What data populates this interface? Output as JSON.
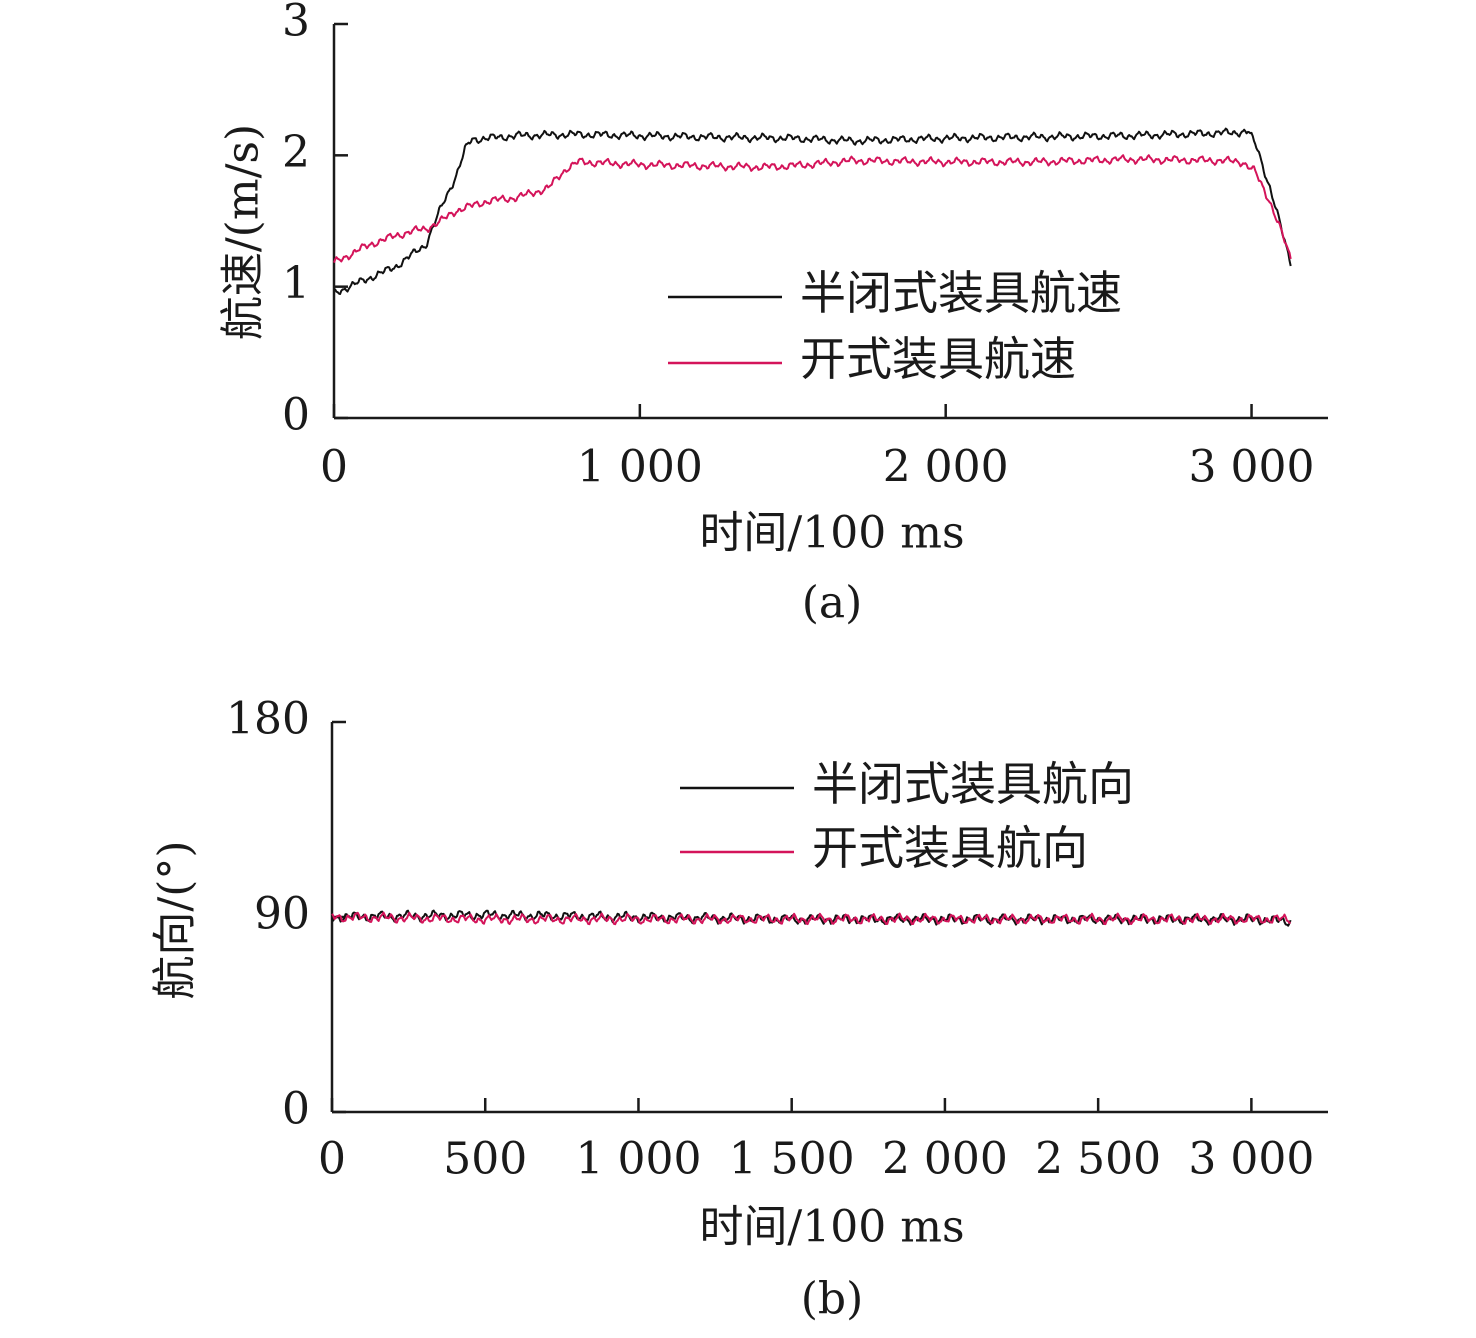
{
  "chart_data": [
    {
      "type": "line",
      "panel_label": "(a)",
      "xlabel": "时间/100 ms",
      "ylabel": "航速/(m/s)",
      "xlim": [
        0,
        3250
      ],
      "ylim": [
        0,
        3
      ],
      "x_ticks": [
        0,
        1000,
        2000,
        3000
      ],
      "x_tick_labels": [
        "0",
        "1 000",
        "2 000",
        "3 000"
      ],
      "y_ticks": [
        0,
        1,
        2,
        3
      ],
      "y_tick_labels": [
        "0",
        "1",
        "2",
        "3"
      ],
      "legend_position": "right-middle",
      "series": [
        {
          "name": "半闭式装具航速",
          "color": "#111111",
          "points": [
            [
              0,
              0.95
            ],
            [
              100,
              1.05
            ],
            [
              200,
              1.15
            ],
            [
              300,
              1.32
            ],
            [
              350,
              1.6
            ],
            [
              400,
              1.85
            ],
            [
              430,
              2.05
            ],
            [
              450,
              2.12
            ],
            [
              600,
              2.15
            ],
            [
              800,
              2.16
            ],
            [
              1000,
              2.15
            ],
            [
              1200,
              2.14
            ],
            [
              1500,
              2.13
            ],
            [
              1700,
              2.11
            ],
            [
              2000,
              2.13
            ],
            [
              2300,
              2.14
            ],
            [
              2600,
              2.15
            ],
            [
              2900,
              2.17
            ],
            [
              2990,
              2.18
            ],
            [
              3020,
              2.05
            ],
            [
              3060,
              1.75
            ],
            [
              3100,
              1.42
            ],
            [
              3130,
              1.17
            ]
          ]
        },
        {
          "name": "开式装具航速",
          "color": "#d4145a",
          "points": [
            [
              0,
              1.18
            ],
            [
              80,
              1.28
            ],
            [
              150,
              1.35
            ],
            [
              250,
              1.42
            ],
            [
              300,
              1.44
            ],
            [
              350,
              1.5
            ],
            [
              400,
              1.58
            ],
            [
              500,
              1.65
            ],
            [
              600,
              1.68
            ],
            [
              700,
              1.75
            ],
            [
              760,
              1.9
            ],
            [
              800,
              1.95
            ],
            [
              1000,
              1.93
            ],
            [
              1200,
              1.92
            ],
            [
              1400,
              1.91
            ],
            [
              1500,
              1.92
            ],
            [
              1700,
              1.96
            ],
            [
              2000,
              1.95
            ],
            [
              2300,
              1.95
            ],
            [
              2600,
              1.97
            ],
            [
              2900,
              1.96
            ],
            [
              2970,
              1.95
            ],
            [
              3010,
              1.88
            ],
            [
              3060,
              1.65
            ],
            [
              3100,
              1.4
            ],
            [
              3130,
              1.2
            ]
          ]
        }
      ]
    },
    {
      "type": "line",
      "panel_label": "(b)",
      "xlabel": "时间/100 ms",
      "ylabel": "航向/(°)",
      "xlim": [
        0,
        3250
      ],
      "ylim": [
        0,
        180
      ],
      "x_ticks": [
        0,
        500,
        1000,
        1500,
        2000,
        2500,
        3000
      ],
      "x_tick_labels": [
        "0",
        "500",
        "1 000",
        "1 500",
        "2 000",
        "2 500",
        "3 000"
      ],
      "y_ticks": [
        0,
        90,
        180
      ],
      "y_tick_labels": [
        "0",
        "90",
        "180"
      ],
      "legend_position": "top-right",
      "series": [
        {
          "name": "半闭式装具航向",
          "color": "#111111",
          "points": [
            [
              0,
              90
            ],
            [
              500,
              91
            ],
            [
              1000,
              90
            ],
            [
              1500,
              89
            ],
            [
              2000,
              89
            ],
            [
              2500,
              89
            ],
            [
              3000,
              89
            ],
            [
              3130,
              88
            ]
          ]
        },
        {
          "name": "开式装具航向",
          "color": "#d4145a",
          "points": [
            [
              0,
              90
            ],
            [
              500,
              89
            ],
            [
              1000,
              89
            ],
            [
              1500,
              89
            ],
            [
              2000,
              89
            ],
            [
              2500,
              89
            ],
            [
              3000,
              89
            ],
            [
              3130,
              89
            ]
          ]
        }
      ]
    }
  ]
}
